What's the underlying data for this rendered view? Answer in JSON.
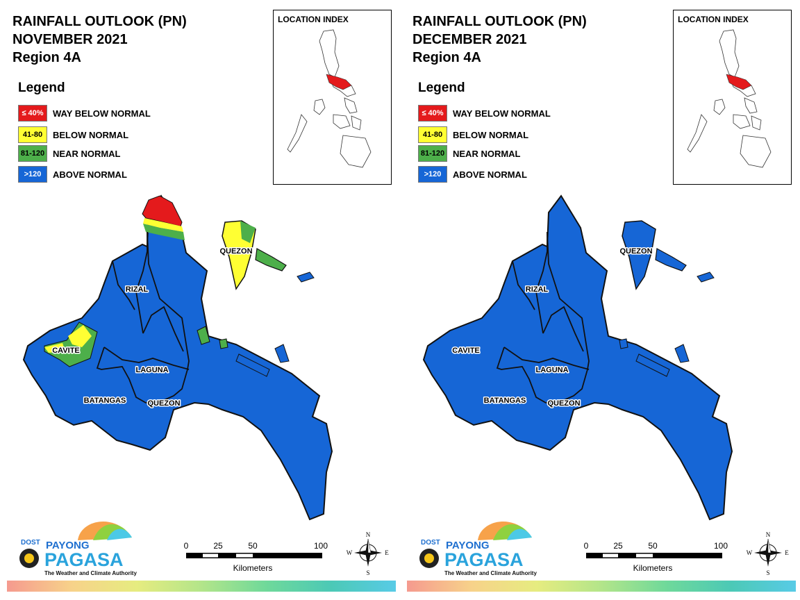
{
  "legend_title": "Legend",
  "legend": [
    {
      "range": "≤ 40%",
      "label": "WAY BELOW NORMAL",
      "color": "#e41a1c",
      "text_color": "#ffffff"
    },
    {
      "range": "41-80",
      "label": "BELOW NORMAL",
      "color": "#ffff33",
      "text_color": "#000000"
    },
    {
      "range": "81-120",
      "label": "NEAR NORMAL",
      "color": "#4daf4a",
      "text_color": "#000000"
    },
    {
      "range": ">120",
      "label": "ABOVE NORMAL",
      "color": "#1666d6",
      "text_color": "#ffffff"
    }
  ],
  "location_index_title": "LOCATION INDEX",
  "map_labels": {
    "rizal": "RIZAL",
    "cavite": "CAVITE",
    "laguna": "LAGUNA",
    "batangas": "BATANGAS",
    "quezon_south": "QUEZON",
    "quezon_north": "QUEZON"
  },
  "panels": [
    {
      "title_line1": "RAINFALL OUTLOOK (PN)",
      "title_line2": "NOVEMBER 2021",
      "title_line3": "Region 4A"
    },
    {
      "title_line1": "RAINFALL OUTLOOK (PN)",
      "title_line2": "DECEMBER 2021",
      "title_line3": "Region 4A"
    }
  ],
  "logo": {
    "dost": "DOST",
    "payong": "PAYONG",
    "pagasa": "PAGASA",
    "tagline": "The Weather and Climate Authority"
  },
  "scale": {
    "ticks": [
      "0",
      "25",
      "50",
      "100"
    ],
    "unit": "Kilometers"
  },
  "compass": {
    "n": "N",
    "s": "S",
    "e": "E",
    "w": "W"
  },
  "colors": {
    "above_normal": "#1666d6",
    "near_normal": "#4daf4a",
    "below_normal": "#ffff33",
    "way_below_normal": "#e41a1c"
  }
}
